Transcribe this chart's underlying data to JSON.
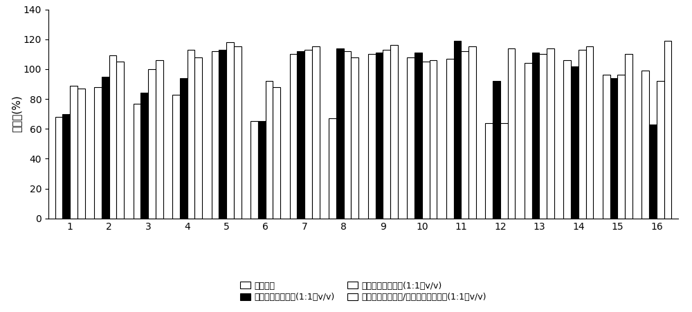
{
  "categories": [
    1,
    2,
    3,
    4,
    5,
    6,
    7,
    8,
    9,
    10,
    11,
    12,
    13,
    14,
    15,
    16
  ],
  "series": {
    "s1": [
      68,
      88,
      77,
      83,
      112,
      65,
      110,
      67,
      110,
      108,
      107,
      64,
      104,
      106,
      96,
      99
    ],
    "s2": [
      70,
      95,
      84,
      94,
      113,
      65,
      112,
      114,
      111,
      111,
      119,
      92,
      111,
      102,
      94,
      63
    ],
    "s3": [
      89,
      109,
      100,
      113,
      118,
      92,
      113,
      112,
      113,
      105,
      112,
      64,
      110,
      113,
      96,
      92
    ],
    "s4": [
      87,
      105,
      106,
      108,
      115,
      88,
      115,
      108,
      116,
      106,
      115,
      114,
      114,
      115,
      110,
      119
    ]
  },
  "legend_labels": [
    "二氯甲烷",
    "正己烷：二氯甲烷(1:1，v/v)",
    "正己烷：乙酸乙酯(1:1，v/v)",
    "正己烷：二氯甲烷/正己烷：乙酸乙酯(1:1，v/v)"
  ],
  "ylabel": "回收率(%)",
  "ylim": [
    0,
    140
  ],
  "yticks": [
    0,
    20,
    40,
    60,
    80,
    100,
    120,
    140
  ],
  "bar_width": 0.19,
  "figsize": [
    10.0,
    4.51
  ],
  "dpi": 100,
  "font_family": "SimHei"
}
